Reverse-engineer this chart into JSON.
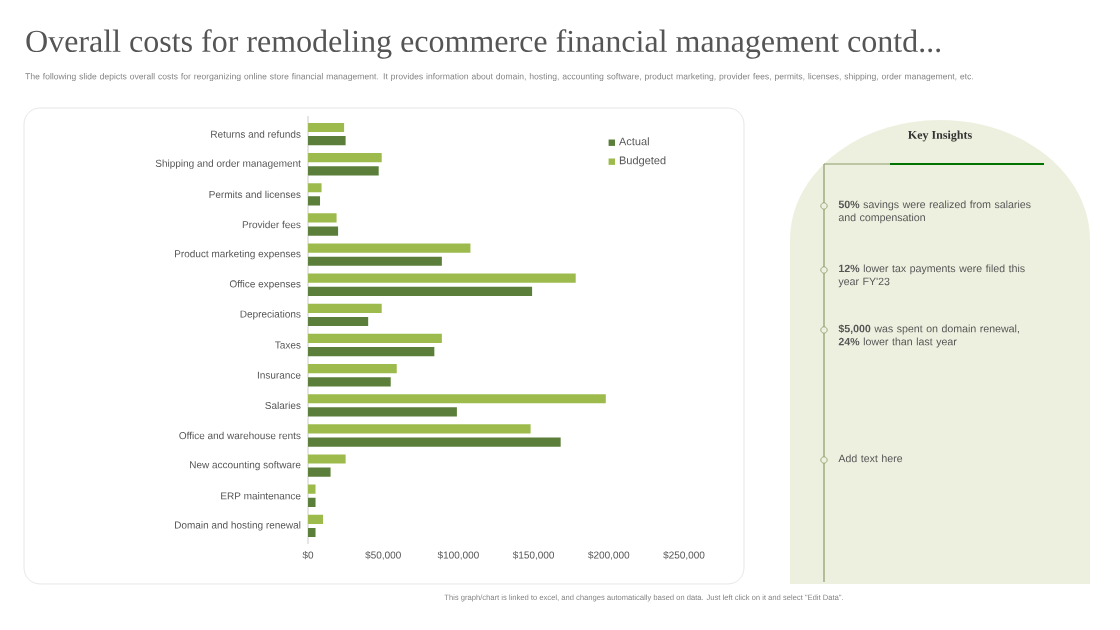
{
  "chart_data": {
    "type": "bar",
    "orientation": "horizontal",
    "title": "Overall costs for remodeling ecommerce financial management contd...",
    "subtitle": "The following slide depicts overall costs for reorganizing online store financial management. It provides information about domain, hosting, accounting software, product marketing, provider fees, permits, licenses, shipping, order management, etc.",
    "categories": [
      "Returns and refunds",
      "Shipping and order management",
      "Permits and licenses",
      "Provider fees",
      "Product marketing expenses",
      "Office expenses",
      "Depreciations",
      "Taxes",
      "Insurance",
      "Salaries",
      "Office and warehouse rents",
      "New accounting software",
      "ERP maintenance",
      "Domain and hosting renewal"
    ],
    "series": [
      {
        "name": "Actual",
        "color": "#5b7f3a",
        "values": [
          25000,
          47000,
          8000,
          20000,
          89000,
          149000,
          40000,
          84000,
          55000,
          99000,
          168000,
          15000,
          5000,
          5000
        ]
      },
      {
        "name": "Budgeted",
        "color": "#9dbb4d",
        "values": [
          24000,
          49000,
          9000,
          19000,
          108000,
          178000,
          49000,
          89000,
          59000,
          198000,
          148000,
          25000,
          5000,
          10000
        ]
      }
    ],
    "xlim": [
      0,
      250000
    ],
    "xticks": [
      {
        "value": 0,
        "label": "$0"
      },
      {
        "value": 50000,
        "label": "$50,000"
      },
      {
        "value": 100000,
        "label": "$100,000"
      },
      {
        "value": 150000,
        "label": "$150,000"
      },
      {
        "value": 200000,
        "label": "$200,000"
      },
      {
        "value": 250000,
        "label": "$250,000"
      }
    ],
    "legend": "top right",
    "annotations": [
      "Key Insights",
      "**50%** savings were realized from salaries and compensation",
      "**12%** lower tax payments were filed this year FY'23",
      "**$5,000** was spent on domain renewal, **24%** lower than last year",
      "Add text here",
      "This graph/chart is linked to excel, and changes automatically based on data. Just left click on it and select \"Edit Data\"."
    ]
  }
}
